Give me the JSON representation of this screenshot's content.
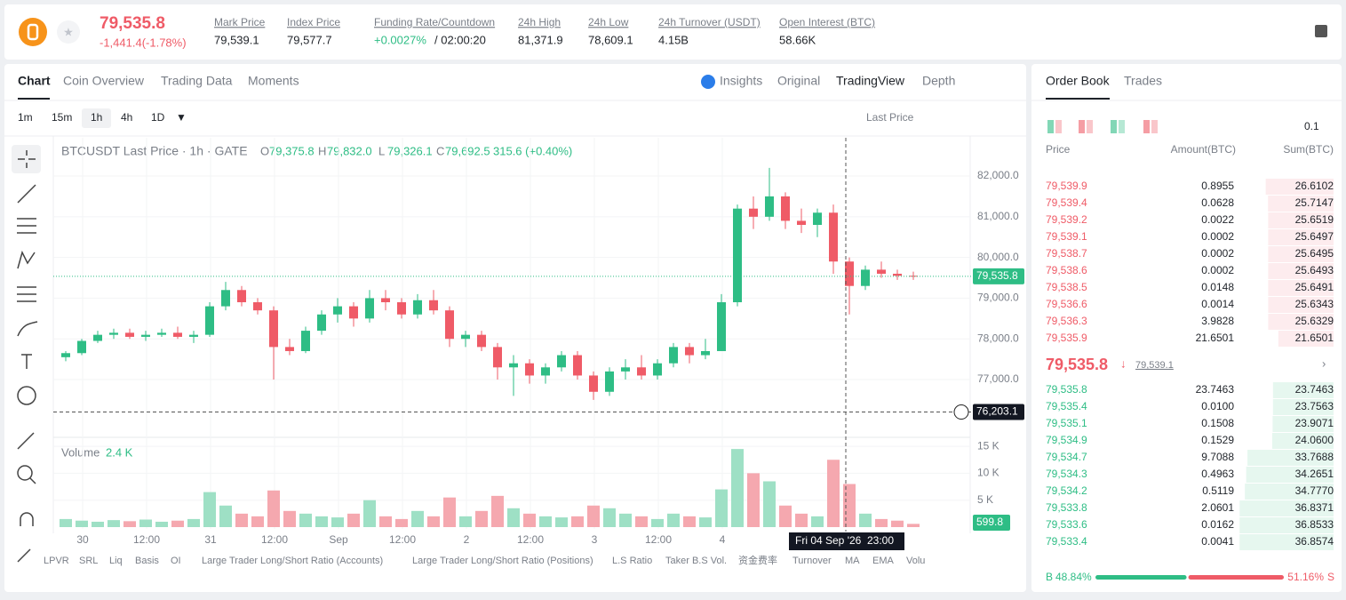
{
  "header": {
    "price": "79,535.8",
    "change": "-1,441.4(-1.78%)",
    "stats": [
      {
        "label": "Mark Price",
        "value": "79,539.1"
      },
      {
        "label": "Index Price",
        "value": "79,577.7"
      },
      {
        "label": "Funding Rate/Countdown",
        "value": "+0.0027%",
        "value2": "/ 02:00:20"
      },
      {
        "label": "24h High",
        "value": "81,371.9"
      },
      {
        "label": "24h Low",
        "value": "78,609.1"
      },
      {
        "label": "24h Turnover (USDT)",
        "value": "4.15B"
      },
      {
        "label": "Open Interest (BTC)",
        "value": "58.66K"
      }
    ]
  },
  "tabs": [
    "Chart",
    "Coin Overview",
    "Trading Data",
    "Moments"
  ],
  "views": [
    "Insights",
    "Original",
    "TradingView",
    "Depth"
  ],
  "intervals": [
    "1m",
    "15m",
    "1h",
    "4h",
    "1D"
  ],
  "price_type": "Last Price",
  "indicators": [
    "LPVR",
    "SRL",
    "Liq",
    "Basis",
    "OI",
    "Large Trader Long/Short Ratio (Accounts)",
    "Large Trader Long/Short Ratio (Positions)",
    "L.S Ratio",
    "Taker B.S Vol.",
    "资金费率",
    "Turnover",
    "MA",
    "EMA",
    "Volu"
  ],
  "chart": {
    "type": "candlestick",
    "title": "BTCUSDT Last Price · 1h · GATE",
    "legend": [
      {
        "key": "O",
        "value": "79,375.8"
      },
      {
        "key": "H",
        "value": "79,832.0"
      },
      {
        "key": "L",
        "value": "79,326.1"
      },
      {
        "key": "C",
        "value": "79,692.5"
      }
    ],
    "change": "315.6 (+0.40%)",
    "volume_title": "Volume",
    "volume_value": "2.4 K",
    "candles": [
      [
        77550,
        77700,
        77450,
        77650
      ],
      [
        77650,
        78000,
        77600,
        77950
      ],
      [
        77950,
        78200,
        77900,
        78100
      ],
      [
        78100,
        78250,
        78000,
        78150
      ],
      [
        78150,
        78250,
        78000,
        78050
      ],
      [
        78050,
        78200,
        77950,
        78100
      ],
      [
        78100,
        78250,
        78050,
        78150
      ],
      [
        78150,
        78300,
        78000,
        78050
      ],
      [
        78050,
        78200,
        77900,
        78100
      ],
      [
        78100,
        78900,
        78050,
        78800
      ],
      [
        78800,
        79400,
        78700,
        79200
      ],
      [
        79200,
        79300,
        78800,
        78900
      ],
      [
        78900,
        79000,
        78600,
        78700
      ],
      [
        78700,
        78800,
        77000,
        77800
      ],
      [
        77800,
        78000,
        77600,
        77700
      ],
      [
        77700,
        78300,
        77650,
        78200
      ],
      [
        78200,
        78700,
        78100,
        78600
      ],
      [
        78600,
        79000,
        78400,
        78800
      ],
      [
        78800,
        78900,
        78300,
        78500
      ],
      [
        78500,
        79200,
        78400,
        79000
      ],
      [
        79000,
        79200,
        78700,
        78900
      ],
      [
        78900,
        79000,
        78500,
        78600
      ],
      [
        78600,
        79100,
        78500,
        78950
      ],
      [
        78950,
        79200,
        78600,
        78700
      ],
      [
        78700,
        78800,
        77800,
        78000
      ],
      [
        78000,
        78200,
        77800,
        78100
      ],
      [
        78100,
        78200,
        77700,
        77800
      ],
      [
        77800,
        77900,
        77000,
        77300
      ],
      [
        77300,
        77600,
        76600,
        77400
      ],
      [
        77400,
        77500,
        76900,
        77100
      ],
      [
        77100,
        77400,
        76900,
        77300
      ],
      [
        77300,
        77700,
        77200,
        77600
      ],
      [
        77600,
        77700,
        77000,
        77100
      ],
      [
        77100,
        77200,
        76500,
        76700
      ],
      [
        76700,
        77300,
        76600,
        77200
      ],
      [
        77200,
        77500,
        77000,
        77300
      ],
      [
        77300,
        77600,
        77000,
        77100
      ],
      [
        77100,
        77500,
        77000,
        77400
      ],
      [
        77400,
        77900,
        77300,
        77800
      ],
      [
        77800,
        77900,
        77400,
        77600
      ],
      [
        77600,
        78000,
        77500,
        77700
      ],
      [
        77700,
        79100,
        77700,
        78900
      ],
      [
        78900,
        81300,
        78800,
        81200
      ],
      [
        81200,
        81500,
        80700,
        81000
      ],
      [
        81000,
        82200,
        80900,
        81500
      ],
      [
        81500,
        81600,
        80700,
        80900
      ],
      [
        80900,
        81200,
        80600,
        80800
      ],
      [
        80800,
        81200,
        80500,
        81100
      ],
      [
        81100,
        81300,
        79600,
        79900
      ],
      [
        79900,
        80000,
        78600,
        79300
      ],
      [
        79300,
        79800,
        79200,
        79700
      ],
      [
        79700,
        79900,
        79500,
        79600
      ],
      [
        79600,
        79700,
        79450,
        79550
      ],
      [
        79550,
        79650,
        79450,
        79535.8
      ]
    ],
    "volume": [
      1500,
      1200,
      1000,
      1300,
      1100,
      1400,
      1000,
      1200,
      1500,
      6500,
      4000,
      2500,
      2000,
      6800,
      3000,
      2500,
      2000,
      1800,
      2500,
      5000,
      2000,
      1500,
      3000,
      2000,
      5500,
      2000,
      3000,
      5800,
      3500,
      2500,
      2000,
      1800,
      2000,
      4000,
      3500,
      2500,
      2000,
      1500,
      2500,
      2000,
      1800,
      7000,
      14500,
      10000,
      8500,
      4000,
      2500,
      2000,
      12500,
      8000,
      2500,
      1500,
      1200,
      599.8
    ],
    "ylim": [
      75625,
      82940
    ],
    "yticks": [
      {
        "value": 77000,
        "label": "77,000.0"
      },
      {
        "value": 78000,
        "label": "78,000.0"
      },
      {
        "value": 79000,
        "label": "79,000.0"
      },
      {
        "value": 80000,
        "label": "80,000.0"
      },
      {
        "value": 81000,
        "label": "81,000.0"
      },
      {
        "value": 82000,
        "label": "82,000.0"
      }
    ],
    "volume_ylim": [
      0,
      16500
    ],
    "volume_yticks": [
      {
        "value": 5000,
        "label": "5 K"
      },
      {
        "value": 10000,
        "label": "10 K"
      },
      {
        "value": 15000,
        "label": "15 K"
      }
    ],
    "x_labels": [
      "30",
      "12:00",
      "31",
      "12:00",
      "Sep",
      "12:00",
      "2",
      "12:00",
      "3",
      "12:00",
      "4"
    ],
    "last_price": {
      "value": 79535.8,
      "label": "79,535.8"
    },
    "crosshair": {
      "value": 76203.1,
      "label": "76,203.1",
      "time": "Fri 04 Sep '26  23:00"
    },
    "volume_tag": "599.8"
  },
  "order_book": {
    "tabs": [
      "Order Book",
      "Trades"
    ],
    "step": "0.1",
    "columns": [
      "Price",
      "Amount(BTC)",
      "Sum(BTC)"
    ],
    "asks": [
      [
        "79,539.9",
        "0.8955",
        "26.6102"
      ],
      [
        "79,539.4",
        "0.0628",
        "25.7147"
      ],
      [
        "79,539.2",
        "0.0022",
        "25.6519"
      ],
      [
        "79,539.1",
        "0.0002",
        "25.6497"
      ],
      [
        "79,538.7",
        "0.0002",
        "25.6495"
      ],
      [
        "79,538.6",
        "0.0002",
        "25.6493"
      ],
      [
        "79,538.5",
        "0.0148",
        "25.6491"
      ],
      [
        "79,536.6",
        "0.0014",
        "25.6343"
      ],
      [
        "79,536.3",
        "3.9828",
        "25.6329"
      ],
      [
        "79,535.9",
        "21.6501",
        "21.6501"
      ]
    ],
    "mid_price": "79,535.8",
    "mark_price": "79,539.1",
    "bids": [
      [
        "79,535.8",
        "23.7463",
        "23.7463"
      ],
      [
        "79,535.4",
        "0.0100",
        "23.7563"
      ],
      [
        "79,535.1",
        "0.1508",
        "23.9071"
      ],
      [
        "79,534.9",
        "0.1529",
        "24.0600"
      ],
      [
        "79,534.7",
        "9.7088",
        "33.7688"
      ],
      [
        "79,534.3",
        "0.4963",
        "34.2651"
      ],
      [
        "79,534.2",
        "0.5119",
        "34.7770"
      ],
      [
        "79,533.8",
        "2.0601",
        "36.8371"
      ],
      [
        "79,533.6",
        "0.0162",
        "36.8533"
      ],
      [
        "79,533.4",
        "0.0041",
        "36.8574"
      ]
    ],
    "ratio": {
      "labels": [
        "B",
        "S"
      ],
      "values": [
        48.84,
        51.16
      ],
      "value_labels": [
        "48.84%",
        "51.16%"
      ]
    }
  }
}
